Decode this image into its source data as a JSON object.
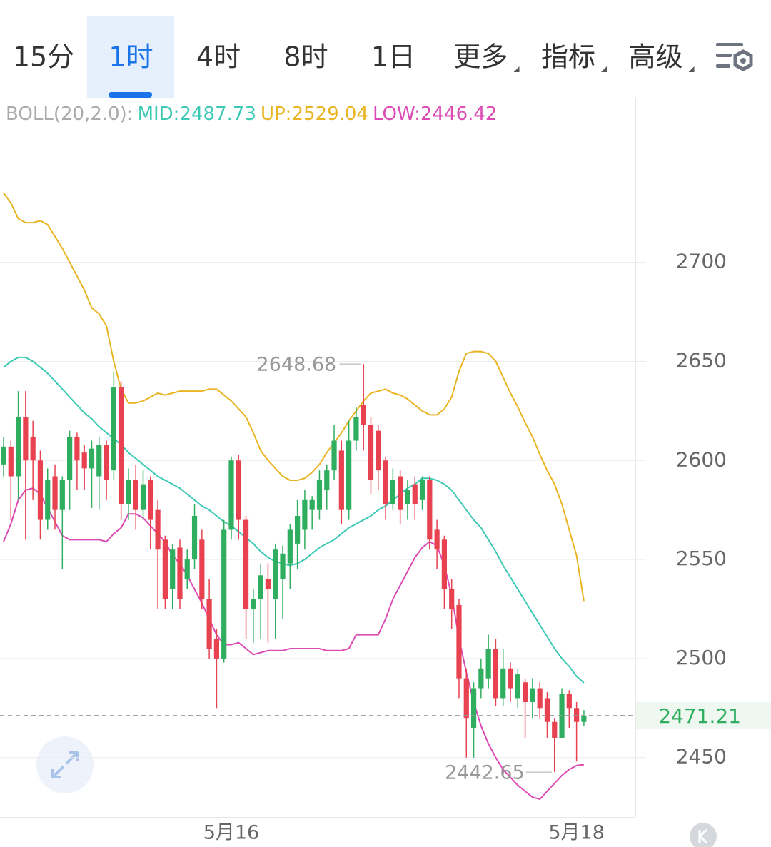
{
  "tabs": {
    "items": [
      "15分",
      "1时",
      "4时",
      "8时",
      "1日",
      "更多",
      "指标",
      "高级"
    ],
    "active": 1
  },
  "chart_data": {
    "type": "candlestick",
    "indicator": "BOLL(20,2.0):",
    "categories": [
      null,
      null,
      null,
      null,
      null,
      null,
      null,
      null,
      null,
      null,
      null,
      null,
      null,
      null,
      null,
      null,
      null,
      null,
      null,
      null,
      null,
      null,
      null,
      null,
      null,
      null,
      null,
      null,
      null,
      null,
      null,
      "5月16",
      null,
      null,
      null,
      null,
      null,
      null,
      null,
      null,
      null,
      null,
      null,
      null,
      null,
      null,
      null,
      null,
      null,
      null,
      null,
      null,
      null,
      null,
      null,
      null,
      null,
      null,
      null,
      null,
      null,
      null,
      null,
      null,
      null,
      null,
      null,
      null,
      null,
      null,
      null,
      null,
      null,
      null,
      null,
      null,
      null,
      null,
      "5月18",
      null
    ],
    "open": [
      2598,
      2607,
      2592,
      2622,
      2612,
      2600,
      2570,
      2592,
      2575,
      2590,
      2612,
      2604,
      2596,
      2592,
      2608,
      2595,
      2637,
      2578,
      2590,
      2575,
      2590,
      2575,
      2560,
      2535,
      2556,
      2540,
      2550,
      2560,
      2530,
      2510,
      2500,
      2565,
      2600,
      2570,
      2525,
      2530,
      2540,
      2530,
      2540,
      2548,
      2558,
      2565,
      2575,
      2575,
      2585,
      2595,
      2605,
      2575,
      2610,
      2628,
      2618,
      2615,
      2600,
      2578,
      2592,
      2578,
      2588,
      2580,
      2590,
      2565,
      2560,
      2535,
      2527,
      2490,
      2465,
      2485,
      2490,
      2505,
      2480,
      2495,
      2480,
      2488,
      2478,
      2485,
      2480,
      2468,
      2460,
      2482,
      2475,
      2468
    ],
    "high": [
      2612,
      2610,
      2635,
      2635,
      2620,
      2605,
      2596,
      2598,
      2592,
      2615,
      2614,
      2608,
      2610,
      2612,
      2610,
      2645,
      2640,
      2596,
      2598,
      2595,
      2592,
      2580,
      2562,
      2558,
      2560,
      2555,
      2578,
      2565,
      2540,
      2515,
      2570,
      2602,
      2603,
      2572,
      2535,
      2548,
      2548,
      2558,
      2557,
      2568,
      2580,
      2585,
      2582,
      2595,
      2598,
      2618,
      2610,
      2620,
      2627,
      2648.68,
      2622,
      2618,
      2602,
      2596,
      2595,
      2590,
      2592,
      2592,
      2592,
      2570,
      2562,
      2540,
      2530,
      2495,
      2488,
      2500,
      2512,
      2510,
      2505,
      2498,
      2495,
      2490,
      2490,
      2488,
      2483,
      2470,
      2485,
      2484,
      2478,
      2474
    ],
    "low": [
      2592,
      2570,
      2580,
      2560,
      2580,
      2560,
      2565,
      2565,
      2545,
      2575,
      2585,
      2585,
      2576,
      2575,
      2580,
      2590,
      2570,
      2570,
      2565,
      2570,
      2555,
      2525,
      2525,
      2525,
      2525,
      2535,
      2545,
      2525,
      2500,
      2475,
      2498,
      2560,
      2560,
      2510,
      2508,
      2510,
      2508,
      2510,
      2520,
      2535,
      2545,
      2555,
      2565,
      2570,
      2575,
      2590,
      2568,
      2570,
      2605,
      2605,
      2583,
      2585,
      2570,
      2575,
      2568,
      2570,
      2570,
      2575,
      2555,
      2545,
      2525,
      2515,
      2480,
      2450,
      2450,
      2480,
      2485,
      2476,
      2476,
      2478,
      2475,
      2460,
      2470,
      2470,
      2460,
      2442.65,
      2460,
      2465,
      2448,
      2466
    ],
    "close": [
      2607,
      2592,
      2622,
      2600,
      2600,
      2570,
      2590,
      2575,
      2590,
      2612,
      2600,
      2596,
      2606,
      2608,
      2590,
      2637,
      2578,
      2590,
      2575,
      2588,
      2570,
      2555,
      2530,
      2555,
      2530,
      2550,
      2572,
      2530,
      2505,
      2500,
      2565,
      2600,
      2570,
      2525,
      2530,
      2542,
      2535,
      2555,
      2553,
      2565,
      2572,
      2580,
      2580,
      2590,
      2595,
      2610,
      2575,
      2610,
      2622,
      2618,
      2590,
      2595,
      2578,
      2590,
      2575,
      2585,
      2578,
      2590,
      2560,
      2555,
      2535,
      2525,
      2490,
      2470,
      2485,
      2495,
      2505,
      2480,
      2495,
      2485,
      2492,
      2478,
      2485,
      2475,
      2468,
      2460,
      2482,
      2475,
      2468,
      2471.21
    ],
    "up_color": "#2fae5f",
    "down_color": "#e8414f",
    "series": [
      {
        "name": "MID:2487.73",
        "color": "#3cc9b4",
        "values": [
          2647,
          2650,
          2652,
          2652,
          2650,
          2647,
          2644,
          2640,
          2636,
          2632,
          2628,
          2624,
          2621,
          2617,
          2614,
          2611,
          2608,
          2604,
          2601,
          2598,
          2595,
          2592,
          2590,
          2588,
          2586,
          2583,
          2580,
          2577,
          2575,
          2572,
          2569,
          2567,
          2564,
          2561,
          2558,
          2554,
          2551,
          2549,
          2548,
          2547,
          2548,
          2550,
          2553,
          2556,
          2558,
          2560,
          2563,
          2566,
          2568,
          2570,
          2572,
          2575,
          2577,
          2580,
          2583,
          2586,
          2588,
          2591,
          2591,
          2590,
          2588,
          2585,
          2580,
          2575,
          2570,
          2566,
          2560,
          2554,
          2547,
          2541,
          2535,
          2529,
          2523,
          2517,
          2511,
          2505,
          2500,
          2496,
          2491,
          2487.73
        ]
      },
      {
        "name": "UP:2529.04",
        "color": "#e8b422",
        "values": [
          2735,
          2730,
          2722,
          2720,
          2720,
          2721,
          2719,
          2713,
          2707,
          2700,
          2693,
          2686,
          2677,
          2674,
          2668,
          2650,
          2636,
          2629,
          2629,
          2630,
          2632,
          2634,
          2633,
          2634,
          2635,
          2635,
          2635,
          2635,
          2636,
          2636,
          2633,
          2630,
          2626,
          2622,
          2614,
          2605,
          2600,
          2596,
          2592,
          2590,
          2590,
          2591,
          2594,
          2598,
          2604,
          2609,
          2614,
          2620,
          2625,
          2630,
          2634,
          2635,
          2636,
          2634,
          2633,
          2631,
          2628,
          2625,
          2623,
          2623,
          2626,
          2632,
          2645,
          2654,
          2655,
          2655,
          2654,
          2650,
          2642,
          2634,
          2627,
          2619,
          2612,
          2603,
          2595,
          2588,
          2578,
          2565,
          2552,
          2529.04
        ]
      },
      {
        "name": "LOW:2446.42",
        "color": "#dc4bb4",
        "values": [
          2559,
          2568,
          2580,
          2585,
          2586,
          2583,
          2576,
          2569,
          2562,
          2560,
          2560,
          2560,
          2560,
          2560,
          2559,
          2563,
          2566,
          2573,
          2573,
          2571,
          2567,
          2563,
          2559,
          2552,
          2548,
          2542,
          2535,
          2528,
          2520,
          2512,
          2507,
          2507,
          2508,
          2505,
          2502,
          2503,
          2504,
          2504,
          2504,
          2505,
          2505,
          2505,
          2505,
          2505,
          2504,
          2504,
          2504,
          2505,
          2512,
          2512,
          2512,
          2512,
          2520,
          2530,
          2537,
          2544,
          2551,
          2556,
          2559,
          2557,
          2547,
          2532,
          2510,
          2493,
          2478,
          2466,
          2457,
          2450,
          2444,
          2440,
          2436,
          2433,
          2430,
          2429,
          2433,
          2437,
          2441,
          2444,
          2446,
          2446.42
        ]
      }
    ],
    "high_label": "2648.68",
    "low_label": "2442.65",
    "last_label": "2471.21",
    "ylim": [
      2420,
      2782
    ],
    "yticks": [
      2450,
      2500,
      2550,
      2600,
      2650,
      2700
    ],
    "grid": true
  }
}
